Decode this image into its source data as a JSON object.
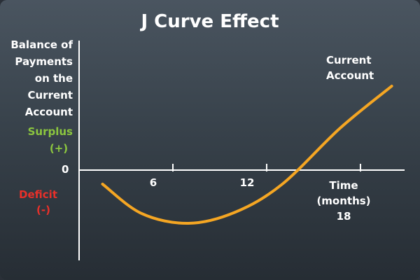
{
  "title": "J Curve Effect",
  "y_axis_label_lines": [
    "Balance of",
    "Payments",
    "on the",
    "Current",
    "Account"
  ],
  "surplus": {
    "label": "Surplus",
    "sign": "(+)",
    "color": "#8cc63f"
  },
  "deficit": {
    "label": "Deficit",
    "sign": "(-)",
    "color": "#e8302a"
  },
  "zero_label": "0",
  "x_axis_label_lines": [
    "Time (months)",
    "18"
  ],
  "series_label_lines": [
    "Current",
    "Account"
  ],
  "curve_color": "#f5a623",
  "chart_data": {
    "type": "line",
    "x_ticks": [
      6,
      12,
      18
    ],
    "tick_labels": [
      "6",
      "12"
    ],
    "series": [
      {
        "name": "Current Account",
        "points": [
          [
            1.5,
            -1.0
          ],
          [
            4,
            -3.1
          ],
          [
            7,
            -3.8
          ],
          [
            10,
            -3.0
          ],
          [
            13,
            -1.0
          ],
          [
            16.7,
            3.0
          ],
          [
            20,
            6.0
          ]
        ]
      }
    ]
  }
}
